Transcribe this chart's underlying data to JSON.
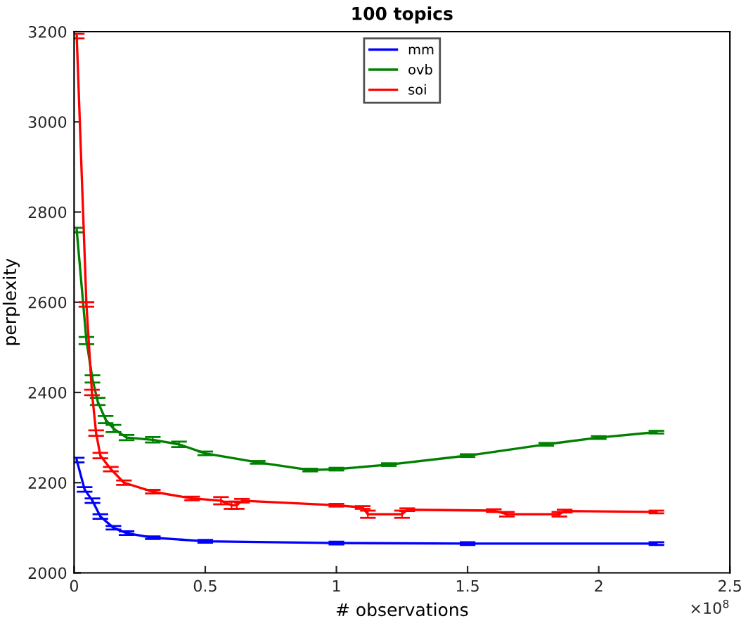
{
  "chart_data": {
    "type": "line",
    "title": "100 topics",
    "xlabel": "# observations",
    "ylabel": "perplexity",
    "annotations": [
      "×10$^{8}$"
    ],
    "xlim": [
      0,
      2.5
    ],
    "xticks": [
      0,
      0.5,
      1,
      1.5,
      2,
      2.5
    ],
    "ylim": [
      2000,
      3200
    ],
    "yticks": [
      2000,
      2200,
      2400,
      2600,
      2800,
      3000,
      3200
    ],
    "grid": false,
    "legend": "top",
    "marker": "none",
    "line_style": "solid",
    "series": [
      {
        "name": "mm",
        "color": "#0000ff",
        "x": [
          0.01,
          0.04,
          0.07,
          0.1,
          0.15,
          0.2,
          0.3,
          0.5,
          1.0,
          1.5,
          2.22
        ],
        "values": [
          2250,
          2185,
          2160,
          2125,
          2100,
          2088,
          2078,
          2070,
          2066,
          2065,
          2065
        ],
        "errors": [
          5,
          5,
          5,
          5,
          4,
          4,
          3,
          3,
          3,
          3,
          3
        ]
      },
      {
        "name": "ovb",
        "color": "#008000",
        "x": [
          0.01,
          0.047,
          0.07,
          0.09,
          0.12,
          0.15,
          0.2,
          0.3,
          0.4,
          0.5,
          0.7,
          0.9,
          1.0,
          1.2,
          1.5,
          1.8,
          2.0,
          2.22
        ],
        "values": [
          2760,
          2515,
          2430,
          2380,
          2340,
          2320,
          2300,
          2295,
          2285,
          2265,
          2245,
          2228,
          2230,
          2240,
          2260,
          2285,
          2300,
          2312
        ],
        "errors": [
          5,
          8,
          8,
          8,
          8,
          8,
          6,
          6,
          6,
          4,
          3,
          3,
          3,
          3,
          3,
          3,
          3,
          3
        ]
      },
      {
        "name": "soi",
        "color": "#ff0000",
        "x": [
          0.01,
          0.047,
          0.068,
          0.084,
          0.1,
          0.14,
          0.19,
          0.3,
          0.45,
          0.56,
          0.6,
          0.62,
          0.64,
          1.0,
          1.1,
          1.12,
          1.25,
          1.27,
          1.6,
          1.65,
          1.85,
          1.87,
          2.22
        ],
        "values": [
          3190,
          2595,
          2400,
          2310,
          2260,
          2230,
          2200,
          2180,
          2165,
          2160,
          2150,
          2150,
          2160,
          2150,
          2145,
          2130,
          2130,
          2140,
          2138,
          2130,
          2130,
          2137,
          2135
        ],
        "errors": [
          5,
          5,
          6,
          6,
          6,
          5,
          5,
          4,
          4,
          8,
          8,
          8,
          4,
          3,
          3,
          8,
          8,
          3,
          3,
          5,
          5,
          3,
          3
        ]
      }
    ]
  }
}
